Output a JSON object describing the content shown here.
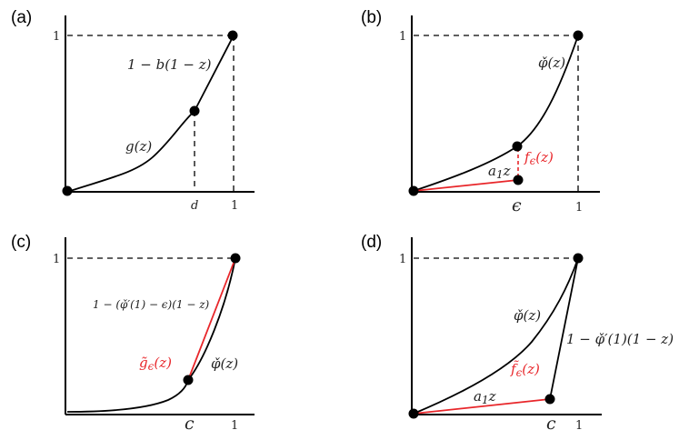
{
  "panels": [
    {
      "label": "(a)",
      "ytick": "1",
      "xticks": [
        "d",
        "1"
      ],
      "annotations": [
        "1 − b(1 − z)",
        "g(z)"
      ]
    },
    {
      "label": "(b)",
      "ytick": "1",
      "xticks": [
        "ϵ",
        "1"
      ],
      "annotations": [
        "φ̌(z)",
        "f",
        "ϵ",
        "(z)",
        "a",
        "1",
        "z"
      ]
    },
    {
      "label": "(c)",
      "ytick": "1",
      "xticks": [
        "c",
        "1"
      ],
      "annotations": [
        "1 − (φ̌′(1) − ϵ)(1 − z)",
        "g̃",
        "ϵ",
        "(z)",
        "φ̌(z)"
      ]
    },
    {
      "label": "(d)",
      "ytick": "1",
      "xticks": [
        "c",
        "1"
      ],
      "annotations": [
        "φ̌(z)",
        "1 − φ̌′(1)(1 − z)",
        "f̃",
        "ϵ",
        "(z)",
        "a",
        "1",
        "z"
      ]
    }
  ],
  "colors": {
    "curve": "#000000",
    "highlight": "#e8262a"
  }
}
